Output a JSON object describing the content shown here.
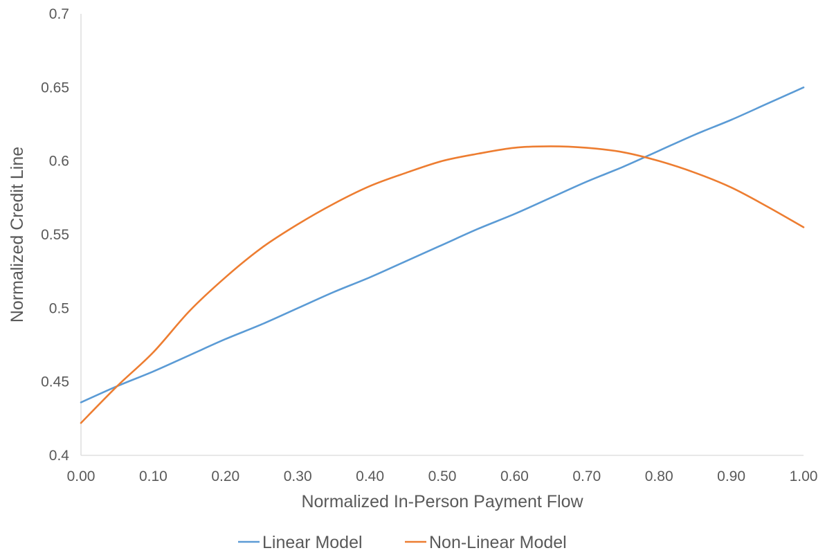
{
  "chart_data": {
    "type": "line",
    "xlabel": "Normalized In-Person Payment Flow",
    "ylabel": "Normalized Credit Line",
    "xlim": [
      0.0,
      1.0
    ],
    "ylim": [
      0.4,
      0.7
    ],
    "x_ticks": [
      "0.00",
      "0.10",
      "0.20",
      "0.30",
      "0.40",
      "0.50",
      "0.60",
      "0.70",
      "0.80",
      "0.90",
      "1.00"
    ],
    "y_ticks": [
      "0.4",
      "0.45",
      "0.5",
      "0.55",
      "0.6",
      "0.65",
      "0.7"
    ],
    "grid": false,
    "legend_position": "bottom",
    "x": [
      0.0,
      0.05,
      0.1,
      0.15,
      0.2,
      0.25,
      0.3,
      0.35,
      0.4,
      0.45,
      0.5,
      0.55,
      0.6,
      0.65,
      0.7,
      0.75,
      0.8,
      0.85,
      0.9,
      0.95,
      1.0
    ],
    "series": [
      {
        "name": "Linear Model",
        "color": "#5b9bd5",
        "values": [
          0.436,
          0.447,
          0.457,
          0.468,
          0.479,
          0.489,
          0.5,
          0.511,
          0.521,
          0.532,
          0.543,
          0.554,
          0.564,
          0.575,
          0.586,
          0.596,
          0.607,
          0.618,
          0.628,
          0.639,
          0.65
        ]
      },
      {
        "name": "Non-Linear Model",
        "color": "#ed7d31",
        "values": [
          0.422,
          0.447,
          0.47,
          0.498,
          0.521,
          0.541,
          0.557,
          0.571,
          0.583,
          0.592,
          0.6,
          0.605,
          0.609,
          0.61,
          0.609,
          0.606,
          0.6,
          0.592,
          0.582,
          0.569,
          0.555
        ]
      }
    ]
  }
}
